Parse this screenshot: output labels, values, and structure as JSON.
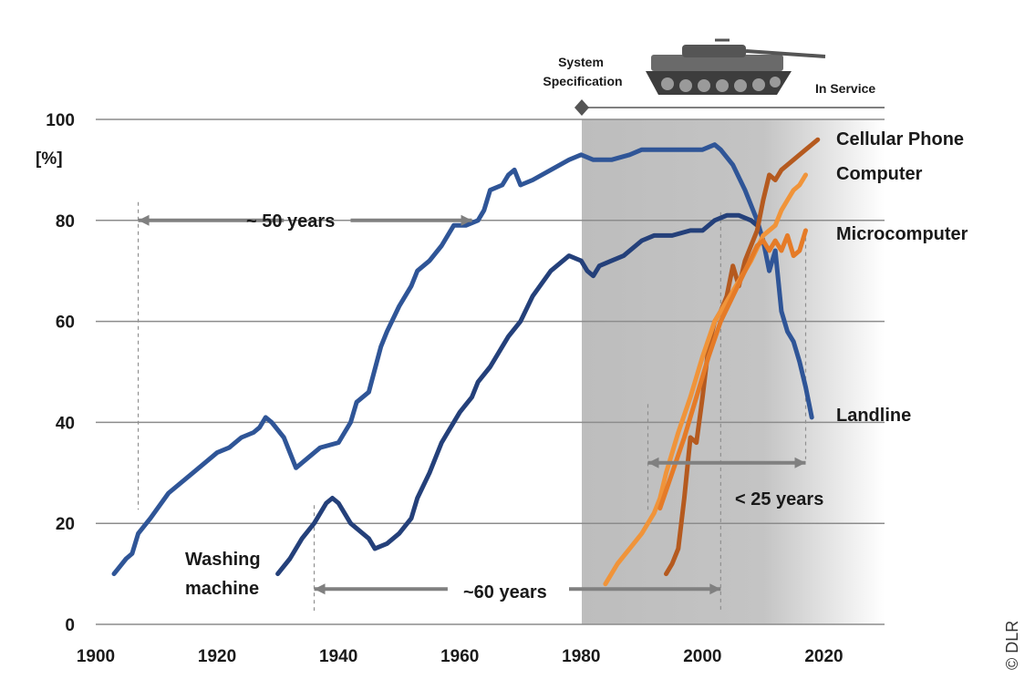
{
  "chart_data": {
    "type": "line",
    "xlim": [
      1900,
      2030
    ],
    "ylim": [
      0,
      100
    ],
    "x_ticks": [
      "1900",
      "1920",
      "1940",
      "1960",
      "1980",
      "2000",
      "2020"
    ],
    "y_ticks": [
      "0",
      "20",
      "40",
      "60",
      "80",
      "100"
    ],
    "ylabel": "[%]",
    "grid": "horizontal",
    "shaded_period": {
      "from": 1980,
      "to": 2030
    },
    "colors": {
      "landline": "#2f5597",
      "washing": "#24407a",
      "cellular": "#b55a1f",
      "computer": "#f0943a",
      "micro": "#e57b27",
      "shade": "#bfbfbf",
      "grid": "#8c8c8c",
      "arrow": "#808080"
    },
    "series": [
      {
        "name": "Landline",
        "color_key": "landline",
        "points": [
          [
            1903,
            10
          ],
          [
            1905,
            13
          ],
          [
            1906,
            14
          ],
          [
            1907,
            18
          ],
          [
            1909,
            21
          ],
          [
            1912,
            26
          ],
          [
            1916,
            30
          ],
          [
            1919,
            33
          ],
          [
            1920,
            34
          ],
          [
            1922,
            35
          ],
          [
            1924,
            37
          ],
          [
            1926,
            38
          ],
          [
            1927,
            39
          ],
          [
            1928,
            41
          ],
          [
            1929,
            40
          ],
          [
            1931,
            37
          ],
          [
            1932,
            34
          ],
          [
            1933,
            31
          ],
          [
            1935,
            33
          ],
          [
            1937,
            35
          ],
          [
            1940,
            36
          ],
          [
            1942,
            40
          ],
          [
            1943,
            44
          ],
          [
            1945,
            46
          ],
          [
            1947,
            55
          ],
          [
            1948,
            58
          ],
          [
            1950,
            63
          ],
          [
            1952,
            67
          ],
          [
            1953,
            70
          ],
          [
            1955,
            72
          ],
          [
            1957,
            75
          ],
          [
            1959,
            79
          ],
          [
            1961,
            79
          ],
          [
            1963,
            80
          ],
          [
            1964,
            82
          ],
          [
            1965,
            86
          ],
          [
            1967,
            87
          ],
          [
            1968,
            89
          ],
          [
            1969,
            90
          ],
          [
            1970,
            87
          ],
          [
            1972,
            88
          ],
          [
            1975,
            90
          ],
          [
            1978,
            92
          ],
          [
            1980,
            93
          ],
          [
            1982,
            92
          ],
          [
            1985,
            92
          ],
          [
            1988,
            93
          ],
          [
            1990,
            94
          ],
          [
            1995,
            94
          ],
          [
            2000,
            94
          ],
          [
            2002,
            95
          ],
          [
            2003,
            94
          ],
          [
            2005,
            91
          ],
          [
            2007,
            86
          ],
          [
            2009,
            80
          ],
          [
            2010,
            76
          ],
          [
            2011,
            70
          ],
          [
            2012,
            74
          ],
          [
            2013,
            62
          ],
          [
            2014,
            58
          ],
          [
            2015,
            56
          ],
          [
            2016,
            52
          ],
          [
            2017,
            47
          ],
          [
            2018,
            41
          ]
        ]
      },
      {
        "name": "Washing machine",
        "color_key": "washing",
        "points": [
          [
            1930,
            10
          ],
          [
            1932,
            13
          ],
          [
            1934,
            17
          ],
          [
            1936,
            20
          ],
          [
            1938,
            24
          ],
          [
            1939,
            25
          ],
          [
            1940,
            24
          ],
          [
            1942,
            20
          ],
          [
            1944,
            18
          ],
          [
            1945,
            17
          ],
          [
            1946,
            15
          ],
          [
            1948,
            16
          ],
          [
            1950,
            18
          ],
          [
            1952,
            21
          ],
          [
            1953,
            25
          ],
          [
            1955,
            30
          ],
          [
            1957,
            36
          ],
          [
            1958,
            38
          ],
          [
            1960,
            42
          ],
          [
            1962,
            45
          ],
          [
            1963,
            48
          ],
          [
            1965,
            51
          ],
          [
            1967,
            55
          ],
          [
            1968,
            57
          ],
          [
            1970,
            60
          ],
          [
            1972,
            65
          ],
          [
            1975,
            70
          ],
          [
            1978,
            73
          ],
          [
            1980,
            72
          ],
          [
            1981,
            70
          ],
          [
            1982,
            69
          ],
          [
            1983,
            71
          ],
          [
            1985,
            72
          ],
          [
            1987,
            73
          ],
          [
            1989,
            75
          ],
          [
            1990,
            76
          ],
          [
            1992,
            77
          ],
          [
            1995,
            77
          ],
          [
            1998,
            78
          ],
          [
            2000,
            78
          ],
          [
            2002,
            80
          ],
          [
            2004,
            81
          ],
          [
            2006,
            81
          ],
          [
            2008,
            80
          ],
          [
            2009,
            79
          ]
        ]
      },
      {
        "name": "Cellular Phone",
        "color_key": "cellular",
        "points": [
          [
            1994,
            10
          ],
          [
            1995,
            12
          ],
          [
            1996,
            15
          ],
          [
            1997,
            25
          ],
          [
            1998,
            37
          ],
          [
            1999,
            36
          ],
          [
            2000,
            45
          ],
          [
            2001,
            55
          ],
          [
            2002,
            60
          ],
          [
            2003,
            62
          ],
          [
            2004,
            65
          ],
          [
            2005,
            71
          ],
          [
            2006,
            67
          ],
          [
            2007,
            72
          ],
          [
            2008,
            75
          ],
          [
            2009,
            78
          ],
          [
            2010,
            84
          ],
          [
            2011,
            89
          ],
          [
            2012,
            88
          ],
          [
            2013,
            90
          ],
          [
            2015,
            92
          ],
          [
            2017,
            94
          ],
          [
            2019,
            96
          ]
        ]
      },
      {
        "name": "Computer",
        "color_key": "computer",
        "points": [
          [
            1984,
            8
          ],
          [
            1986,
            12
          ],
          [
            1988,
            15
          ],
          [
            1990,
            18
          ],
          [
            1991,
            20
          ],
          [
            1992,
            22
          ],
          [
            1993,
            25
          ],
          [
            1994,
            30
          ],
          [
            1996,
            38
          ],
          [
            1998,
            45
          ],
          [
            2000,
            53
          ],
          [
            2002,
            60
          ],
          [
            2004,
            64
          ],
          [
            2006,
            68
          ],
          [
            2008,
            72
          ],
          [
            2010,
            77
          ],
          [
            2012,
            79
          ],
          [
            2013,
            82
          ],
          [
            2014,
            84
          ],
          [
            2015,
            86
          ],
          [
            2016,
            87
          ],
          [
            2017,
            89
          ]
        ]
      },
      {
        "name": "Microcomputer",
        "color_key": "micro",
        "points": [
          [
            1993,
            23
          ],
          [
            1995,
            30
          ],
          [
            1997,
            37
          ],
          [
            1999,
            45
          ],
          [
            2001,
            53
          ],
          [
            2003,
            60
          ],
          [
            2005,
            65
          ],
          [
            2007,
            70
          ],
          [
            2009,
            75
          ],
          [
            2010,
            76
          ],
          [
            2011,
            74
          ],
          [
            2012,
            76
          ],
          [
            2013,
            74
          ],
          [
            2014,
            77
          ],
          [
            2015,
            73
          ],
          [
            2016,
            74
          ],
          [
            2017,
            78
          ]
        ]
      }
    ],
    "series_labels": [
      "Cellular Phone",
      "Computer",
      "Microcomputer",
      "Landline",
      "Washing",
      "machine"
    ],
    "annotations": {
      "fifty_years": "~ 50 years",
      "sixty_years": "~60 years",
      "twentyfive_years": "< 25 years",
      "system_spec_line1": "System",
      "system_spec_line2": "Specification",
      "in_service": "In Service"
    },
    "copyright": "© DLR"
  }
}
